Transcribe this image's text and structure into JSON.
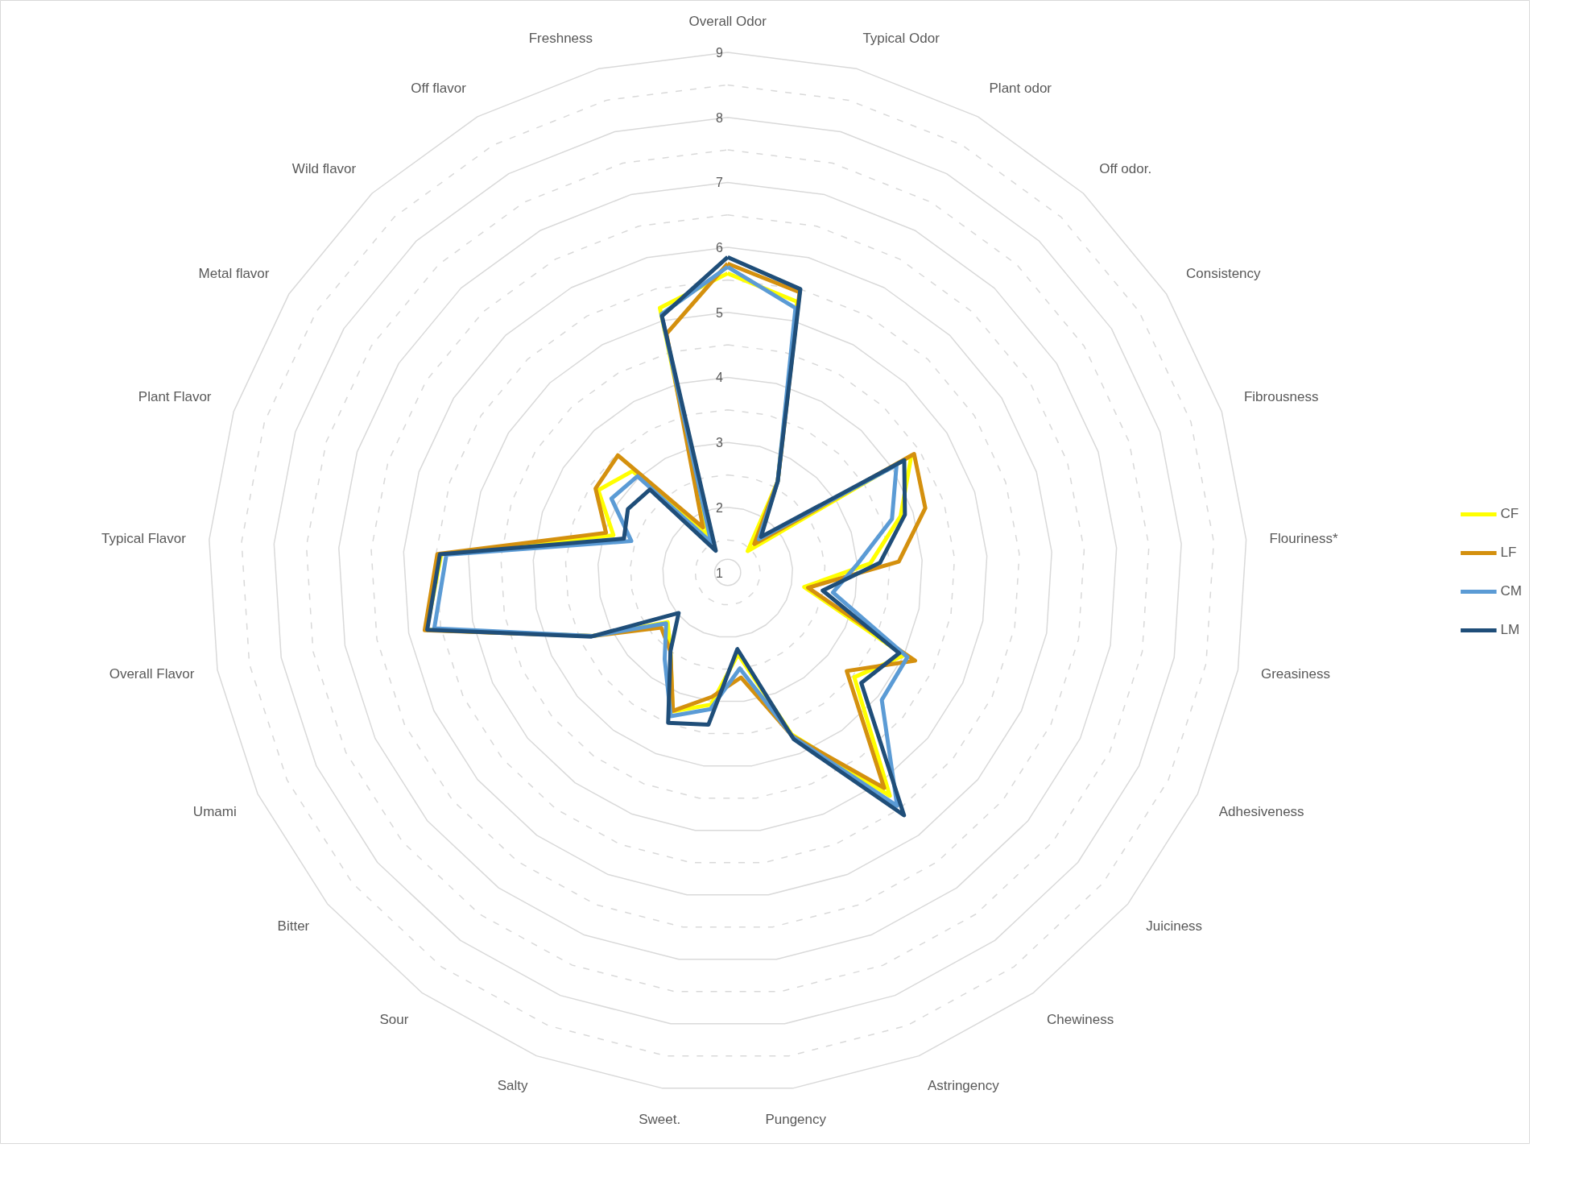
{
  "chart_data": {
    "type": "radar",
    "categories": [
      "Overall Odor",
      "Typical Odor",
      "Plant odor",
      "Off odor.",
      "Consistency",
      "Fibrousness",
      "Flouriness*",
      "Greasiness",
      "Adhesiveness",
      "Juiciness",
      "Chewiness",
      "Astringency",
      "Pungency",
      "Sweet.",
      "Salty",
      "Sour",
      "Bitter",
      "Umami",
      "Overall Flavor",
      "Typical Flavor",
      "Plant Flavor",
      "Metal flavor",
      "Wild flavor",
      "Off flavor",
      "Freshness"
    ],
    "series": [
      {
        "name": "CF",
        "color": "#ffff00",
        "values": [
          5.6,
          5.3,
          2.6,
          1.45,
          4.35,
          3.8,
          3.2,
          2.2,
          4.0,
          3.53,
          5.25,
          3.68,
          2.27,
          3.05,
          3.3,
          2.5,
          2.2,
          3.3,
          5.72,
          5.42,
          2.85,
          3.36,
          3.14,
          1.64,
          5.2
        ]
      },
      {
        "name": "LF",
        "color": "#d4900e",
        "values": [
          5.75,
          5.45,
          2.6,
          1.6,
          4.4,
          4.2,
          3.64,
          2.26,
          4.19,
          3.38,
          5.1,
          3.71,
          2.63,
          2.93,
          3.29,
          2.5,
          2.33,
          3.3,
          5.75,
          5.48,
          2.97,
          3.41,
          3.47,
          1.79,
          4.79
        ]
      },
      {
        "name": "CM",
        "color": "#5b9bd5",
        "values": [
          5.7,
          5.2,
          2.6,
          1.7,
          4.08,
          3.66,
          3.0,
          2.65,
          4.06,
          4.08,
          5.44,
          3.72,
          2.49,
          3.12,
          3.38,
          2.65,
          2.23,
          3.3,
          5.6,
          5.34,
          2.56,
          3.12,
          3.03,
          1.53,
          5.1
        ]
      },
      {
        "name": "LM",
        "color": "#1f4e79",
        "values": [
          5.85,
          5.5,
          2.6,
          1.75,
          4.22,
          3.87,
          3.35,
          2.49,
          3.92,
          3.67,
          5.62,
          3.76,
          2.19,
          3.36,
          3.49,
          2.5,
          1.98,
          3.32,
          5.71,
          5.44,
          2.68,
          2.82,
          2.75,
          1.38,
          5.07
        ]
      }
    ],
    "ylim": [
      1,
      9
    ],
    "yticks": [
      1,
      2,
      3,
      4,
      5,
      6,
      7,
      8,
      9
    ],
    "grid": true,
    "legend": "right",
    "line_style": "solid",
    "marker": "none"
  }
}
